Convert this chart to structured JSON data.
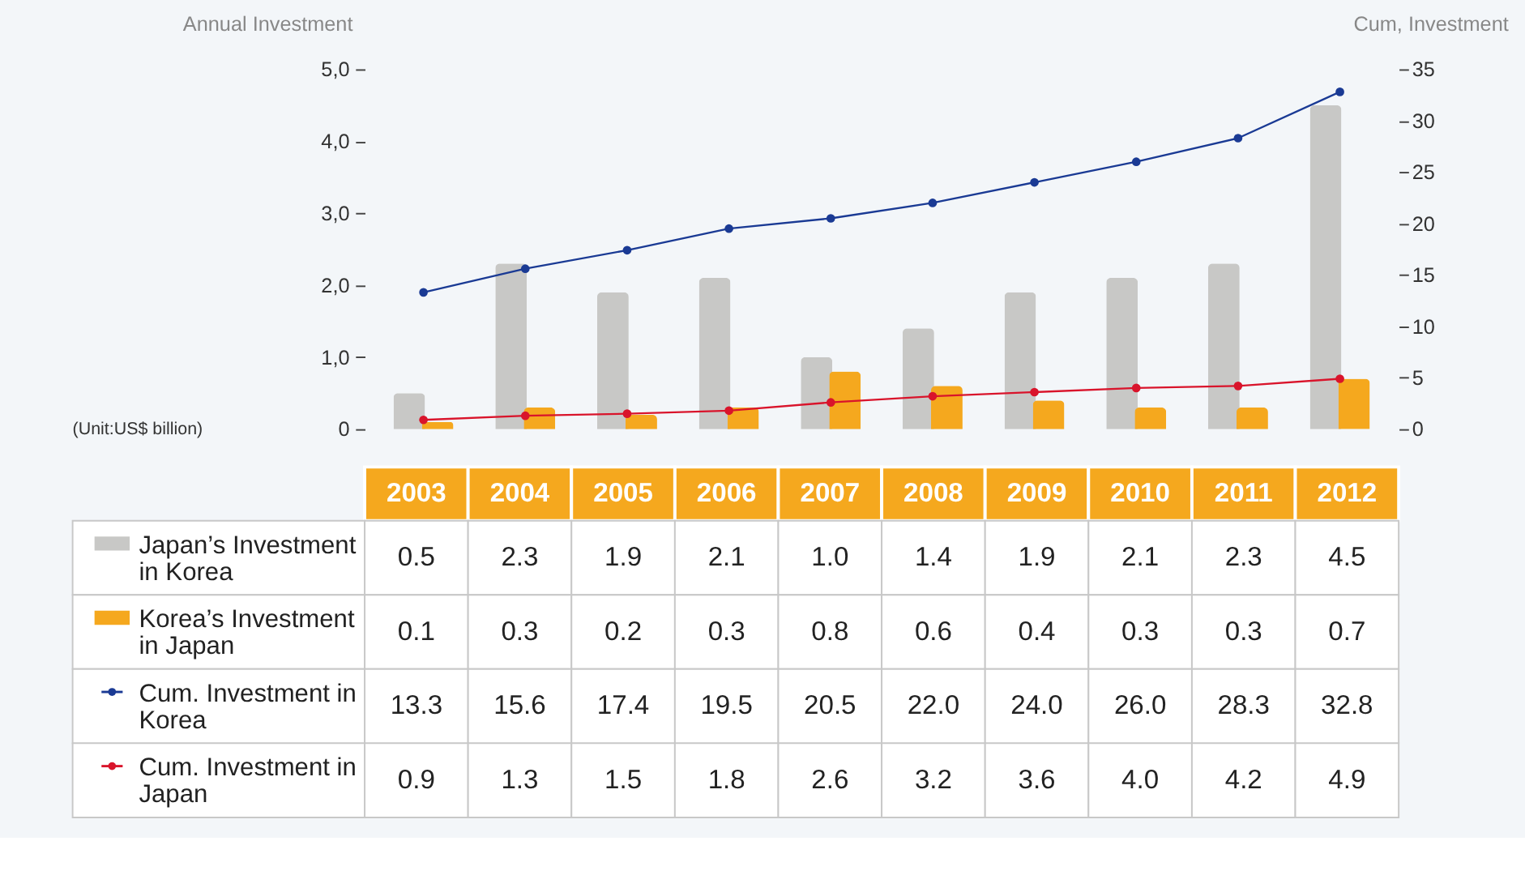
{
  "chart_data": {
    "type": "bar",
    "categories": [
      "2003",
      "2004",
      "2005",
      "2006",
      "2007",
      "2008",
      "2009",
      "2010",
      "2011",
      "2012"
    ],
    "series": [
      {
        "name": "Japan’s Investment in Korea",
        "color": "#c8c8c6",
        "values": [
          0.5,
          2.3,
          1.9,
          2.1,
          1.0,
          1.4,
          1.9,
          2.1,
          2.3,
          4.5
        ],
        "value_labels": [
          "0.5",
          "2.3",
          "1.9",
          "2.1",
          "1.0",
          "1.4",
          "1.9",
          "2.1",
          "2.3",
          "4.5"
        ]
      },
      {
        "name": "Korea’s Investment in Japan",
        "color": "#f5a81e",
        "values": [
          0.1,
          0.3,
          0.2,
          0.3,
          0.8,
          0.6,
          0.4,
          0.3,
          0.3,
          0.7
        ],
        "value_labels": [
          "0.1",
          "0.3",
          "0.2",
          "0.3",
          "0.8",
          "0.6",
          "0.4",
          "0.3",
          "0.3",
          "0.7"
        ]
      },
      {
        "name": "Cum. Investment in Korea",
        "color": "#1a3a94",
        "type": "line",
        "axis": "y2",
        "values": [
          13.3,
          15.6,
          17.4,
          19.5,
          20.5,
          22.0,
          24.0,
          26.0,
          28.3,
          32.8
        ],
        "value_labels": [
          "13.3",
          "15.6",
          "17.4",
          "19.5",
          "20.5",
          "22.0",
          "24.0",
          "26.0",
          "28.3",
          "32.8"
        ]
      },
      {
        "name": "Cum. Investment in Japan",
        "color": "#d9142b",
        "type": "line",
        "axis": "y2",
        "values": [
          0.9,
          1.3,
          1.5,
          1.8,
          2.6,
          3.2,
          3.6,
          4.0,
          4.2,
          4.9
        ],
        "value_labels": [
          "0.9",
          "1.3",
          "1.5",
          "1.8",
          "2.6",
          "3.2",
          "3.6",
          "4.0",
          "4.2",
          "4.9"
        ]
      }
    ],
    "ylabel": "Annual Investment",
    "y2label": "Cum, Investment",
    "ylim": [
      0,
      5
    ],
    "yticks": [
      0,
      {
        "value": 1,
        "label": "1,0"
      },
      {
        "value": 2,
        "label": "2,0"
      },
      {
        "value": 3,
        "label": "3,0"
      },
      {
        "value": 4,
        "label": "4,0"
      },
      {
        "value": 5,
        "label": "5,0"
      }
    ],
    "y2lim": [
      0,
      35
    ],
    "y2ticks": [
      0,
      5,
      10,
      15,
      20,
      25,
      30,
      35
    ],
    "marker": "circle",
    "line_style": "solid",
    "grid": false,
    "legend": "bottom",
    "annotations": [
      "(Unit:US$ billion)"
    ]
  }
}
